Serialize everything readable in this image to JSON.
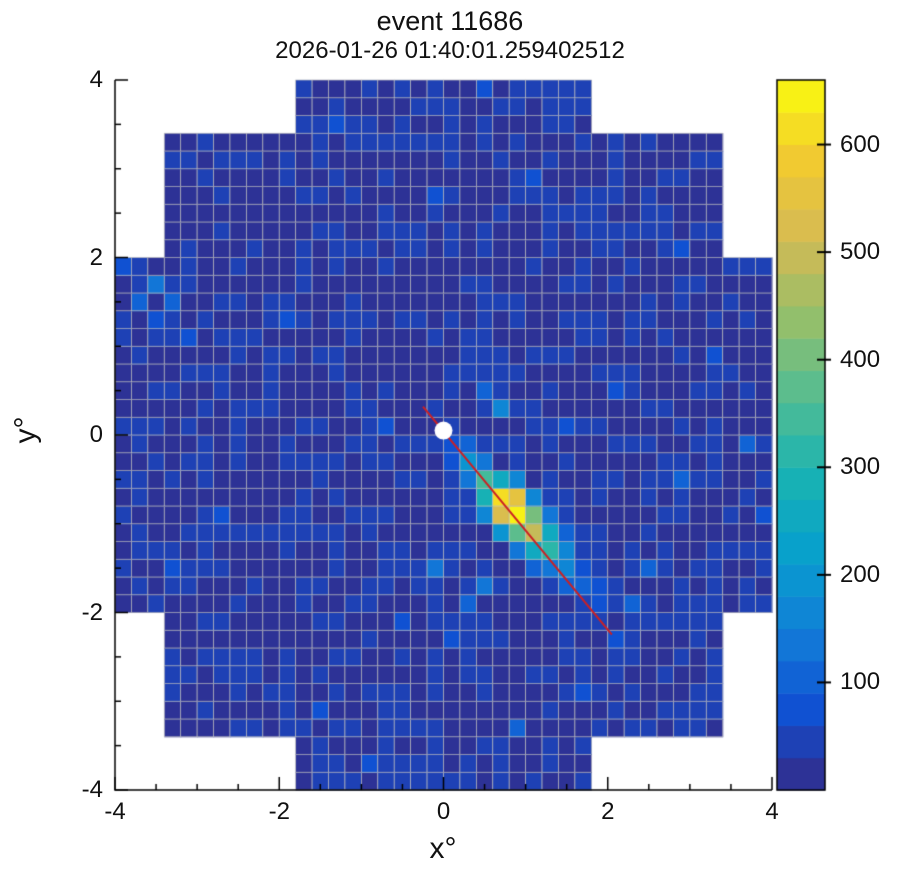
{
  "header": {
    "title": "event 11686",
    "subtitle": "2026-01-26 01:40:01.259402512"
  },
  "chart_data": {
    "type": "heatmap",
    "title": "event 11686",
    "subtitle": "2026-01-26 01:40:01.259402512",
    "xlabel": "x°",
    "ylabel": "y°",
    "xlim": [
      -4,
      4
    ],
    "ylim": [
      -4,
      4
    ],
    "pixel_size": 0.2,
    "xticks": [
      -4,
      -2,
      0,
      2,
      4
    ],
    "yticks": [
      -4,
      -2,
      0,
      2,
      4
    ],
    "minor_tick_step": 0.5,
    "grid": true,
    "grid_color": "#bebebe",
    "camera_shape": {
      "rows": [
        {
          "max_abs_y": 2.0,
          "half_width": 4.0
        },
        {
          "max_abs_y": 3.4,
          "half_width": 3.4
        },
        {
          "max_abs_y": 4.0,
          "half_width": 1.8
        }
      ]
    },
    "baseline": 25,
    "colorbar": {
      "min": 0,
      "max": 660,
      "ticks": [
        100,
        200,
        300,
        400,
        500,
        600
      ],
      "bands": 22,
      "position": "right",
      "palette": [
        "#352a87",
        "#1050d2",
        "#127dd8",
        "#07a0cd",
        "#19b3b2",
        "#55bd92",
        "#96bf69",
        "#d5ba54",
        "#f2ca30",
        "#f9fb0e"
      ]
    },
    "hotspots": [
      [
        0.3,
        -0.3,
        180
      ],
      [
        0.5,
        -0.5,
        350
      ],
      [
        0.7,
        -0.7,
        620
      ],
      [
        0.9,
        -0.9,
        660
      ],
      [
        1.1,
        -1.1,
        480
      ],
      [
        1.3,
        -1.3,
        300
      ],
      [
        1.5,
        -1.5,
        170
      ],
      [
        1.7,
        -1.7,
        90
      ],
      [
        0.5,
        -0.7,
        280
      ],
      [
        0.7,
        -0.5,
        250
      ],
      [
        0.7,
        -0.9,
        520
      ],
      [
        0.9,
        -0.7,
        540
      ],
      [
        0.9,
        -1.1,
        380
      ],
      [
        1.1,
        -0.9,
        400
      ],
      [
        1.1,
        -1.3,
        240
      ],
      [
        1.3,
        -1.1,
        260
      ],
      [
        1.3,
        -1.5,
        140
      ],
      [
        1.5,
        -1.3,
        150
      ],
      [
        0.3,
        -0.5,
        140
      ],
      [
        0.5,
        -0.3,
        120
      ],
      [
        1.5,
        -1.7,
        90
      ],
      [
        1.7,
        -1.5,
        80
      ],
      [
        0.5,
        -0.9,
        150
      ],
      [
        0.9,
        -0.5,
        160
      ],
      [
        0.7,
        -1.1,
        180
      ],
      [
        1.1,
        -0.7,
        170
      ],
      [
        1.3,
        -0.9,
        130
      ],
      [
        0.9,
        -1.3,
        140
      ],
      [
        0.3,
        -0.1,
        90
      ],
      [
        0.1,
        -0.1,
        70
      ],
      [
        1.9,
        -1.9,
        70
      ],
      [
        1.5,
        -1.1,
        100
      ],
      [
        1.1,
        -1.5,
        110
      ],
      [
        1.9,
        -1.7,
        65
      ],
      [
        0.1,
        -0.3,
        75
      ]
    ],
    "noise": [
      [
        -3.5,
        1.7,
        120
      ],
      [
        -3.7,
        1.5,
        100
      ],
      [
        -3.3,
        1.5,
        90
      ],
      [
        -3.5,
        1.3,
        80
      ],
      [
        -3.9,
        1.9,
        70
      ],
      [
        -3.1,
        1.1,
        60
      ],
      [
        -0.1,
        2.7,
        80
      ],
      [
        1.1,
        2.9,
        70
      ],
      [
        -1.3,
        3.5,
        60
      ],
      [
        0.5,
        3.9,
        60
      ],
      [
        2.9,
        2.1,
        60
      ],
      [
        3.3,
        0.9,
        70
      ],
      [
        3.7,
        -0.1,
        90
      ],
      [
        2.9,
        -0.5,
        100
      ],
      [
        3.9,
        -0.9,
        60
      ],
      [
        0.7,
        0.3,
        150
      ],
      [
        0.5,
        0.5,
        90
      ],
      [
        1.5,
        0.1,
        80
      ],
      [
        -0.7,
        0.1,
        60
      ],
      [
        -2.7,
        -0.9,
        70
      ],
      [
        -3.3,
        -1.5,
        60
      ],
      [
        -0.1,
        -1.5,
        120
      ],
      [
        0.3,
        -1.9,
        100
      ],
      [
        -0.5,
        -2.1,
        80
      ],
      [
        0.1,
        -2.3,
        70
      ],
      [
        0.5,
        -1.7,
        130
      ],
      [
        0.9,
        -3.3,
        90
      ],
      [
        1.7,
        -2.9,
        70
      ],
      [
        2.3,
        -1.9,
        110
      ],
      [
        2.1,
        -2.3,
        80
      ],
      [
        2.5,
        -1.5,
        90
      ],
      [
        -1.5,
        -3.1,
        60
      ],
      [
        -0.9,
        -3.7,
        60
      ],
      [
        2.1,
        0.5,
        60
      ],
      [
        -1.9,
        1.3,
        60
      ]
    ],
    "source_marker": {
      "x": 0.0,
      "y": 0.05,
      "color": "#ffffff",
      "radius_px": 9
    },
    "shower_axis_line": {
      "x1": -0.25,
      "y1": 0.32,
      "x2": 2.05,
      "y2": -2.25,
      "color": "#cc2024"
    }
  }
}
